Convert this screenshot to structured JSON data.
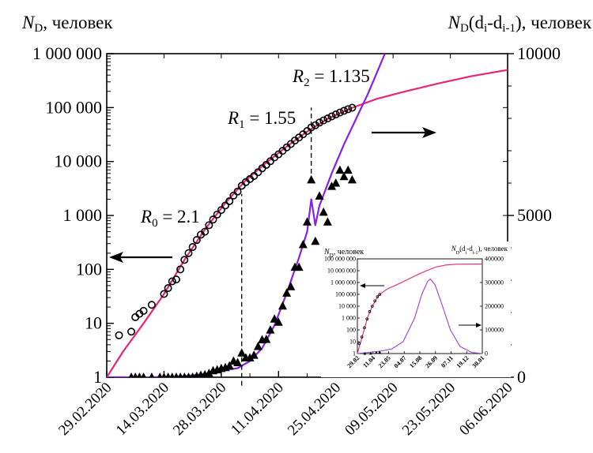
{
  "chart_data": [
    {
      "type": "line",
      "title": "",
      "ylabel_left": {
        "symbol": "N",
        "sub": "D",
        "suffix": ", человек"
      },
      "ylabel_right": {
        "symbol": "N",
        "sub": "D",
        "mid": "(d",
        "sub2": "i",
        "mid2": "-d",
        "sub3": "i-1",
        "suffix": "), человек"
      },
      "x_axis": {
        "type": "date",
        "range": [
          "2020-02-29",
          "2020-06-06"
        ],
        "tick_labels": [
          "29.02.2020",
          "14.03.2020",
          "28.03.2020",
          "11.04.2020",
          "25.04.2020",
          "09.05.2020",
          "23.05.2020",
          "06.06.2020"
        ]
      },
      "y_left": {
        "scale": "log",
        "range": [
          1,
          1000000
        ],
        "tick_labels": [
          "1",
          "10",
          "100",
          "1 000",
          "10 000",
          "100 000",
          "1 000 000"
        ]
      },
      "y_right": {
        "scale": "linear",
        "range": [
          0,
          10000
        ],
        "tick_labels": [
          "0",
          "5000",
          "10000"
        ]
      },
      "series": [
        {
          "kind": "observed-cumulative",
          "marker": "circle-open",
          "axis": "left",
          "points": [
            [
              "2020-03-03",
              6
            ],
            [
              "2020-03-06",
              7
            ],
            [
              "2020-03-07",
              13
            ],
            [
              "2020-03-08",
              15
            ],
            [
              "2020-03-09",
              17
            ],
            [
              "2020-03-11",
              22
            ],
            [
              "2020-03-14",
              35
            ],
            [
              "2020-03-15",
              45
            ],
            [
              "2020-03-16",
              60
            ],
            [
              "2020-03-17",
              65
            ],
            [
              "2020-03-18",
              100
            ],
            [
              "2020-03-19",
              150
            ],
            [
              "2020-03-20",
              200
            ],
            [
              "2020-03-21",
              260
            ],
            [
              "2020-03-22",
              350
            ],
            [
              "2020-03-23",
              440
            ],
            [
              "2020-03-24",
              500
            ],
            [
              "2020-03-25",
              660
            ],
            [
              "2020-03-26",
              840
            ],
            [
              "2020-03-27",
              1040
            ],
            [
              "2020-03-28",
              1260
            ],
            [
              "2020-03-29",
              1530
            ],
            [
              "2020-03-30",
              1840
            ],
            [
              "2020-03-31",
              2340
            ],
            [
              "2020-04-01",
              2780
            ],
            [
              "2020-04-02",
              3550
            ],
            [
              "2020-04-03",
              4150
            ],
            [
              "2020-04-04",
              4730
            ],
            [
              "2020-04-05",
              5390
            ],
            [
              "2020-04-06",
              6340
            ],
            [
              "2020-04-07",
              7500
            ],
            [
              "2020-04-08",
              8670
            ],
            [
              "2020-04-09",
              10130
            ],
            [
              "2020-04-10",
              11900
            ],
            [
              "2020-04-11",
              13600
            ],
            [
              "2020-04-12",
              15800
            ],
            [
              "2020-04-13",
              18300
            ],
            [
              "2020-04-14",
              21100
            ],
            [
              "2020-04-15",
              24500
            ],
            [
              "2020-04-16",
              27900
            ],
            [
              "2020-04-17",
              32000
            ],
            [
              "2020-04-18",
              36800
            ],
            [
              "2020-04-19",
              42900
            ],
            [
              "2020-04-20",
              47100
            ],
            [
              "2020-04-21",
              52800
            ],
            [
              "2020-04-22",
              57900
            ],
            [
              "2020-04-23",
              62800
            ],
            [
              "2020-04-24",
              68600
            ],
            [
              "2020-04-25",
              74600
            ],
            [
              "2020-04-26",
              80900
            ],
            [
              "2020-04-27",
              87100
            ],
            [
              "2020-04-28",
              93500
            ],
            [
              "2020-04-29",
              99400
            ]
          ]
        },
        {
          "kind": "model-cumulative",
          "line": "solid",
          "color": "#e8257a",
          "axis": "left",
          "points": [
            [
              "2020-02-29",
              1
            ],
            [
              "2020-03-04",
              3
            ],
            [
              "2020-03-09",
              10
            ],
            [
              "2020-03-14",
              35
            ],
            [
              "2020-03-19",
              150
            ],
            [
              "2020-03-24",
              550
            ],
            [
              "2020-03-29",
              1700
            ],
            [
              "2020-04-03",
              4500
            ],
            [
              "2020-04-08",
              9500
            ],
            [
              "2020-04-13",
              19000
            ],
            [
              "2020-04-18",
              36000
            ],
            [
              "2020-04-23",
              62000
            ],
            [
              "2020-04-29",
              99000
            ],
            [
              "2020-05-05",
              145000
            ],
            [
              "2020-05-12",
              200000
            ],
            [
              "2020-05-20",
              280000
            ],
            [
              "2020-05-28",
              380000
            ],
            [
              "2020-06-06",
              500000
            ]
          ]
        },
        {
          "kind": "observed-daily",
          "marker": "triangle-filled",
          "axis": "right",
          "points": [
            [
              "2020-03-06",
              0
            ],
            [
              "2020-03-07",
              0
            ],
            [
              "2020-03-08",
              0
            ],
            [
              "2020-03-09",
              0
            ],
            [
              "2020-03-11",
              0
            ],
            [
              "2020-03-13",
              0
            ],
            [
              "2020-03-14",
              0
            ],
            [
              "2020-03-15",
              0
            ],
            [
              "2020-03-16",
              0
            ],
            [
              "2020-03-17",
              0
            ],
            [
              "2020-03-18",
              0
            ],
            [
              "2020-03-19",
              0
            ],
            [
              "2020-03-20",
              0
            ],
            [
              "2020-03-21",
              0
            ],
            [
              "2020-03-22",
              30
            ],
            [
              "2020-03-23",
              60
            ],
            [
              "2020-03-24",
              80
            ],
            [
              "2020-03-25",
              120
            ],
            [
              "2020-03-26",
              200
            ],
            [
              "2020-03-27",
              230
            ],
            [
              "2020-03-28",
              270
            ],
            [
              "2020-03-29",
              300
            ],
            [
              "2020-03-30",
              350
            ],
            [
              "2020-03-31",
              500
            ],
            [
              "2020-04-01",
              450
            ],
            [
              "2020-04-02",
              750
            ],
            [
              "2020-04-03",
              600
            ],
            [
              "2020-04-04",
              600
            ],
            [
              "2020-04-05",
              680
            ],
            [
              "2020-04-06",
              950
            ],
            [
              "2020-04-07",
              1160
            ],
            [
              "2020-04-08",
              1170
            ],
            [
              "2020-04-09",
              1460
            ],
            [
              "2020-04-10",
              1800
            ],
            [
              "2020-04-11",
              1700
            ],
            [
              "2020-04-12",
              2200
            ],
            [
              "2020-04-13",
              2600
            ],
            [
              "2020-04-14",
              2800
            ],
            [
              "2020-04-15",
              3400
            ],
            [
              "2020-04-16",
              3400
            ],
            [
              "2020-04-17",
              4100
            ],
            [
              "2020-04-18",
              4800
            ],
            [
              "2020-04-19",
              6100
            ],
            [
              "2020-04-20",
              4200
            ],
            [
              "2020-04-21",
              5600
            ],
            [
              "2020-04-22",
              5100
            ],
            [
              "2020-04-23",
              4800
            ],
            [
              "2020-04-24",
              5900
            ],
            [
              "2020-04-25",
              6000
            ],
            [
              "2020-04-26",
              6400
            ],
            [
              "2020-04-27",
              6200
            ],
            [
              "2020-04-28",
              6400
            ],
            [
              "2020-04-29",
              6100
            ]
          ]
        },
        {
          "kind": "model-daily",
          "line": "solid",
          "color": "#8a1fe6",
          "axis": "right",
          "points": [
            [
              "2020-02-29",
              0
            ],
            [
              "2020-03-10",
              0
            ],
            [
              "2020-03-18",
              20
            ],
            [
              "2020-03-24",
              100
            ],
            [
              "2020-03-28",
              200
            ],
            [
              "2020-04-01",
              280
            ],
            [
              "2020-04-04",
              500
            ],
            [
              "2020-04-07",
              900
            ],
            [
              "2020-04-10",
              1600
            ],
            [
              "2020-04-13",
              2600
            ],
            [
              "2020-04-16",
              3700
            ],
            [
              "2020-04-18",
              4500
            ],
            [
              "2020-04-19",
              5500
            ],
            [
              "2020-04-20",
              4700
            ],
            [
              "2020-04-21",
              5300
            ],
            [
              "2020-04-24",
              6300
            ],
            [
              "2020-04-27",
              7200
            ],
            [
              "2020-04-30",
              8000
            ],
            [
              "2020-05-03",
              8800
            ],
            [
              "2020-05-06",
              9700
            ],
            [
              "2020-05-07",
              10000
            ]
          ]
        }
      ],
      "annotations": [
        {
          "text": "R",
          "sub": "0",
          "suffix": " = 2.1",
          "date": "2020-03-18"
        },
        {
          "text": "R",
          "sub": "1",
          "suffix": " = 1.55",
          "date": "2020-04-09"
        },
        {
          "text": "R",
          "sub": "2",
          "suffix": " = 1.135",
          "date": "2020-04-23"
        }
      ],
      "phase_boundaries": [
        {
          "date": "2020-04-02",
          "from": 0.7,
          "to": 2500
        },
        {
          "date": "2020-04-19",
          "from": 6000,
          "to": 100000
        }
      ],
      "arrows": [
        {
          "points_to": "left-axis"
        },
        {
          "points_to": "right-axis"
        }
      ]
    },
    {
      "type": "line",
      "role": "inset",
      "ylabel_left": {
        "symbol": "N",
        "sub": "D",
        "suffix": ", человек"
      },
      "ylabel_right": {
        "symbol": "N",
        "sub": "D",
        "mid": "(d",
        "sub2": "i",
        "mid2": "-d",
        "sub3": "i-1",
        "suffix": "), человек"
      },
      "x_axis": {
        "type": "date",
        "range": [
          "2020-02-29",
          "2021-01-30"
        ],
        "tick_labels": [
          "29.02",
          "11.04",
          "23.05",
          "04.07",
          "15.08",
          "26.09",
          "07.11",
          "19.12",
          "30.01"
        ]
      },
      "y_left": {
        "scale": "log",
        "range": [
          1,
          100000000
        ],
        "tick_labels": [
          "1",
          "10",
          "100",
          "1 000",
          "10 000",
          "100 000",
          "1 000 000",
          "10 000 000",
          "100 000 000"
        ]
      },
      "y_right": {
        "scale": "linear",
        "range": [
          0,
          400000
        ],
        "tick_labels": [
          "0",
          "100000",
          "200000",
          "300000",
          "400000"
        ]
      },
      "series": [
        {
          "kind": "model-cumulative",
          "color": "#e8257a",
          "axis": "left",
          "points": [
            [
              "2020-02-29",
              1
            ],
            [
              "2020-03-14",
              35
            ],
            [
              "2020-03-28",
              1300
            ],
            [
              "2020-04-11",
              13000
            ],
            [
              "2020-04-25",
              75000
            ],
            [
              "2020-05-09",
              170000
            ],
            [
              "2020-05-23",
              330000
            ],
            [
              "2020-06-06",
              500000
            ],
            [
              "2020-07-04",
              1300000
            ],
            [
              "2020-08-01",
              3500000
            ],
            [
              "2020-08-29",
              9000000
            ],
            [
              "2020-09-26",
              20000000
            ],
            [
              "2020-10-24",
              30000000
            ],
            [
              "2020-11-21",
              35000000
            ],
            [
              "2020-12-19",
              36000000
            ],
            [
              "2021-01-30",
              36500000
            ]
          ]
        },
        {
          "kind": "observed-cumulative",
          "marker": "circle-open",
          "axis": "left",
          "points": [
            [
              "2020-03-05",
              7
            ],
            [
              "2020-03-12",
              25
            ],
            [
              "2020-03-19",
              150
            ],
            [
              "2020-03-26",
              840
            ],
            [
              "2020-04-02",
              3500
            ],
            [
              "2020-04-09",
              10000
            ],
            [
              "2020-04-16",
              28000
            ],
            [
              "2020-04-23",
              63000
            ],
            [
              "2020-04-29",
              99000
            ]
          ]
        },
        {
          "kind": "model-daily",
          "color": "#9a3fd6",
          "axis": "right",
          "points": [
            [
              "2020-02-29",
              0
            ],
            [
              "2020-05-01",
              10000
            ],
            [
              "2020-06-01",
              20000
            ],
            [
              "2020-07-01",
              50000
            ],
            [
              "2020-08-01",
              150000
            ],
            [
              "2020-08-20",
              250000
            ],
            [
              "2020-09-05",
              305000
            ],
            [
              "2020-09-12",
              315000
            ],
            [
              "2020-09-25",
              290000
            ],
            [
              "2020-10-15",
              200000
            ],
            [
              "2020-11-05",
              100000
            ],
            [
              "2020-12-01",
              30000
            ],
            [
              "2021-01-01",
              5000
            ],
            [
              "2021-01-30",
              0
            ]
          ]
        },
        {
          "kind": "observed-daily",
          "marker": "triangle-filled",
          "axis": "right",
          "points": [
            [
              "2020-03-20",
              0
            ],
            [
              "2020-04-05",
              700
            ],
            [
              "2020-04-20",
              4000
            ],
            [
              "2020-04-29",
              6000
            ]
          ]
        }
      ],
      "arrows": [
        {
          "points_to": "left-axis"
        },
        {
          "points_to": "right-axis"
        }
      ]
    }
  ]
}
